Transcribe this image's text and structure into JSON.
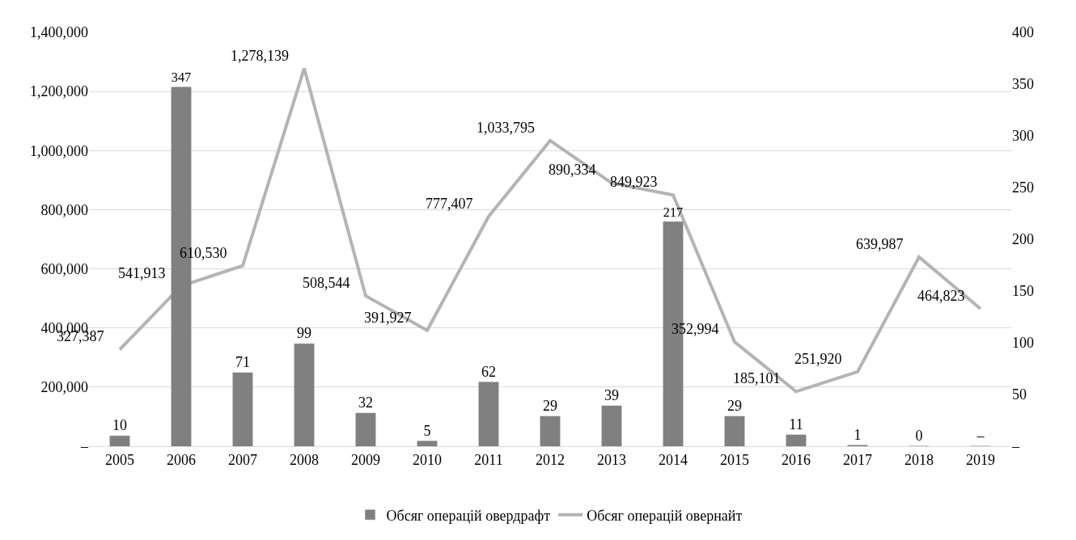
{
  "chart_data": {
    "type": "bar",
    "categories": [
      "2005",
      "2006",
      "2007",
      "2008",
      "2009",
      "2010",
      "2011",
      "2012",
      "2013",
      "2014",
      "2015",
      "2016",
      "2017",
      "2018",
      "2019"
    ],
    "series": [
      {
        "name": "Обсяг операцій овердрафт",
        "axis": "y2",
        "color": "#808080",
        "values": [
          10,
          347,
          71,
          99,
          32,
          5,
          62,
          29,
          39,
          217,
          29,
          11,
          1,
          0,
          0
        ],
        "value_labels": [
          "10",
          "347",
          "71",
          "99",
          "32",
          "5",
          "62",
          "29",
          "39",
          "217",
          "29",
          "11",
          "1",
          "0",
          "–"
        ]
      },
      {
        "name": "Обсяг операцій овернайт",
        "type": "line",
        "axis": "y",
        "color": "#b4b4b4",
        "values": [
          327387,
          541913,
          610530,
          1278139,
          508544,
          391927,
          777407,
          1033795,
          890334,
          849923,
          352994,
          185101,
          251920,
          639987,
          464823
        ],
        "value_labels": [
          "327,387",
          "541,913",
          "610,530",
          "1,278,139",
          "508,544",
          "391,927",
          "777,407",
          "1,033,795",
          "890,334",
          "849,923",
          "352,994",
          "185,101",
          "251,920",
          "639,987",
          "464,823"
        ]
      }
    ],
    "ylim": [
      0,
      1400000
    ],
    "yticks": [
      {
        "value": 0,
        "label": "–"
      },
      {
        "value": 200000,
        "label": "200,000"
      },
      {
        "value": 400000,
        "label": "400,000"
      },
      {
        "value": 600000,
        "label": "600,000"
      },
      {
        "value": 800000,
        "label": "800,000"
      },
      {
        "value": 1000000,
        "label": "1,000,000"
      },
      {
        "value": 1200000,
        "label": "1,200,000"
      },
      {
        "value": 1400000,
        "label": "1,400,000"
      }
    ],
    "y2lim": [
      0,
      400
    ],
    "y2ticks": [
      {
        "value": 0,
        "label": "–"
      },
      50,
      100,
      150,
      200,
      250,
      300,
      350,
      400
    ],
    "grid": "y",
    "legend": "bottom",
    "marker": "none",
    "line_style": "solid"
  }
}
